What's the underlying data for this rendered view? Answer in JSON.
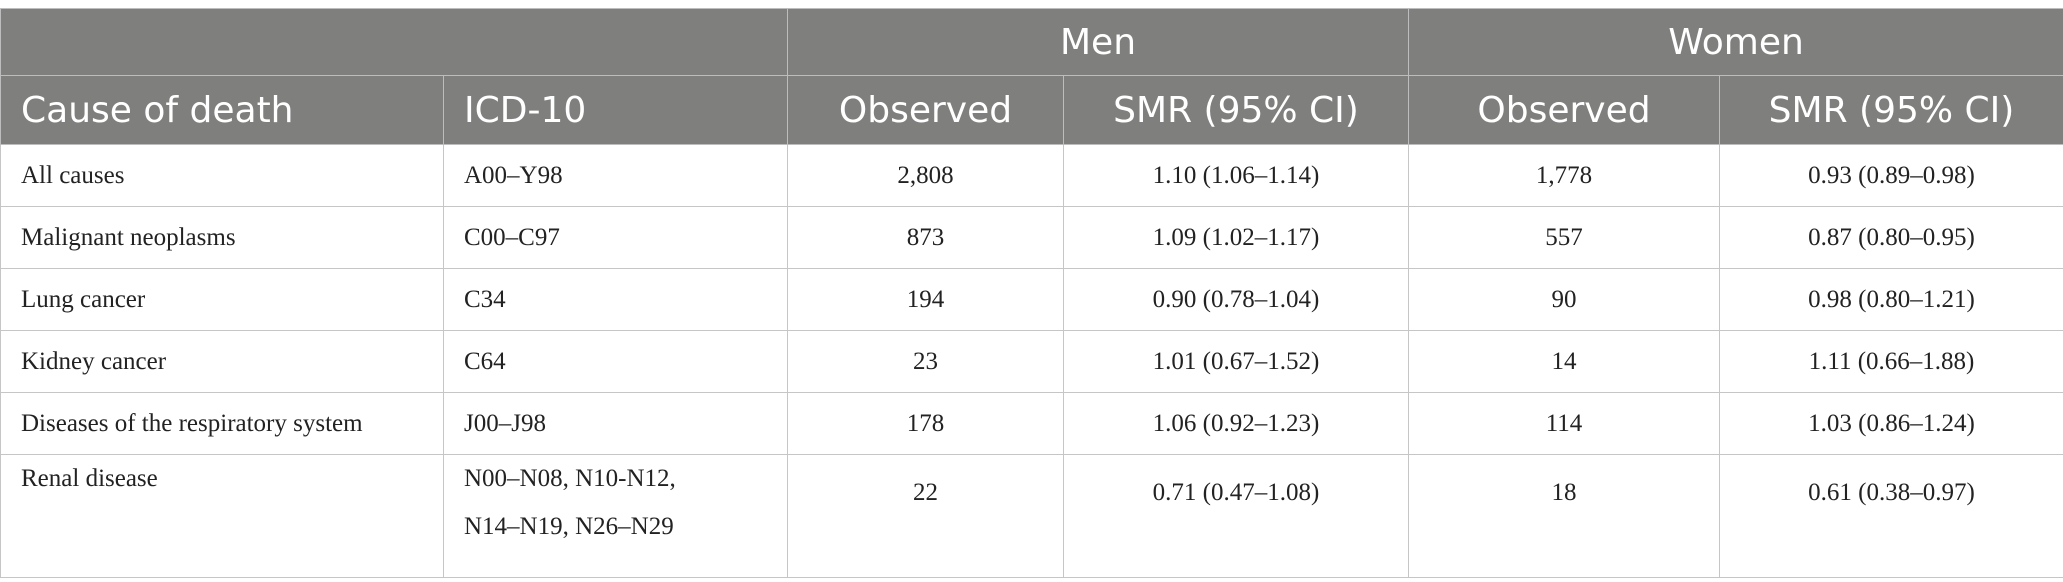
{
  "header": {
    "group_men": "Men",
    "group_women": "Women",
    "col_cause": "Cause of death",
    "col_icd": "ICD-10",
    "col_observed_men": "Observed",
    "col_smr_men": "SMR (95% CI)",
    "col_observed_women": "Observed",
    "col_smr_women": "SMR (95% CI)"
  },
  "rows": [
    {
      "cause": "All causes",
      "icd_line1": "A00–Y98",
      "icd_line2": "",
      "men_obs": "2,808",
      "men_smr": "1.10 (1.06–1.14)",
      "women_obs": "1,778",
      "women_smr": "0.93 (0.89–0.98)"
    },
    {
      "cause": "Malignant neoplasms",
      "icd_line1": "C00–C97",
      "icd_line2": "",
      "men_obs": "873",
      "men_smr": "1.09 (1.02–1.17)",
      "women_obs": "557",
      "women_smr": "0.87 (0.80–0.95)"
    },
    {
      "cause": "Lung cancer",
      "icd_line1": "C34",
      "icd_line2": "",
      "men_obs": "194",
      "men_smr": "0.90 (0.78–1.04)",
      "women_obs": "90",
      "women_smr": "0.98 (0.80–1.21)"
    },
    {
      "cause": "Kidney cancer",
      "icd_line1": "C64",
      "icd_line2": "",
      "men_obs": "23",
      "men_smr": "1.01 (0.67–1.52)",
      "women_obs": "14",
      "women_smr": "1.11 (0.66–1.88)"
    },
    {
      "cause": "Diseases of the respiratory system",
      "icd_line1": "J00–J98",
      "icd_line2": "",
      "men_obs": "178",
      "men_smr": "1.06 (0.92–1.23)",
      "women_obs": "114",
      "women_smr": "1.03 (0.86–1.24)"
    },
    {
      "cause": "Renal disease",
      "icd_line1": "N00–N08, N10-N12,",
      "icd_line2": "N14–N19, N26–N29",
      "men_obs": "22",
      "men_smr": "0.71 (0.47–1.08)",
      "women_obs": "18",
      "women_smr": "0.61 (0.38–0.97)"
    }
  ]
}
